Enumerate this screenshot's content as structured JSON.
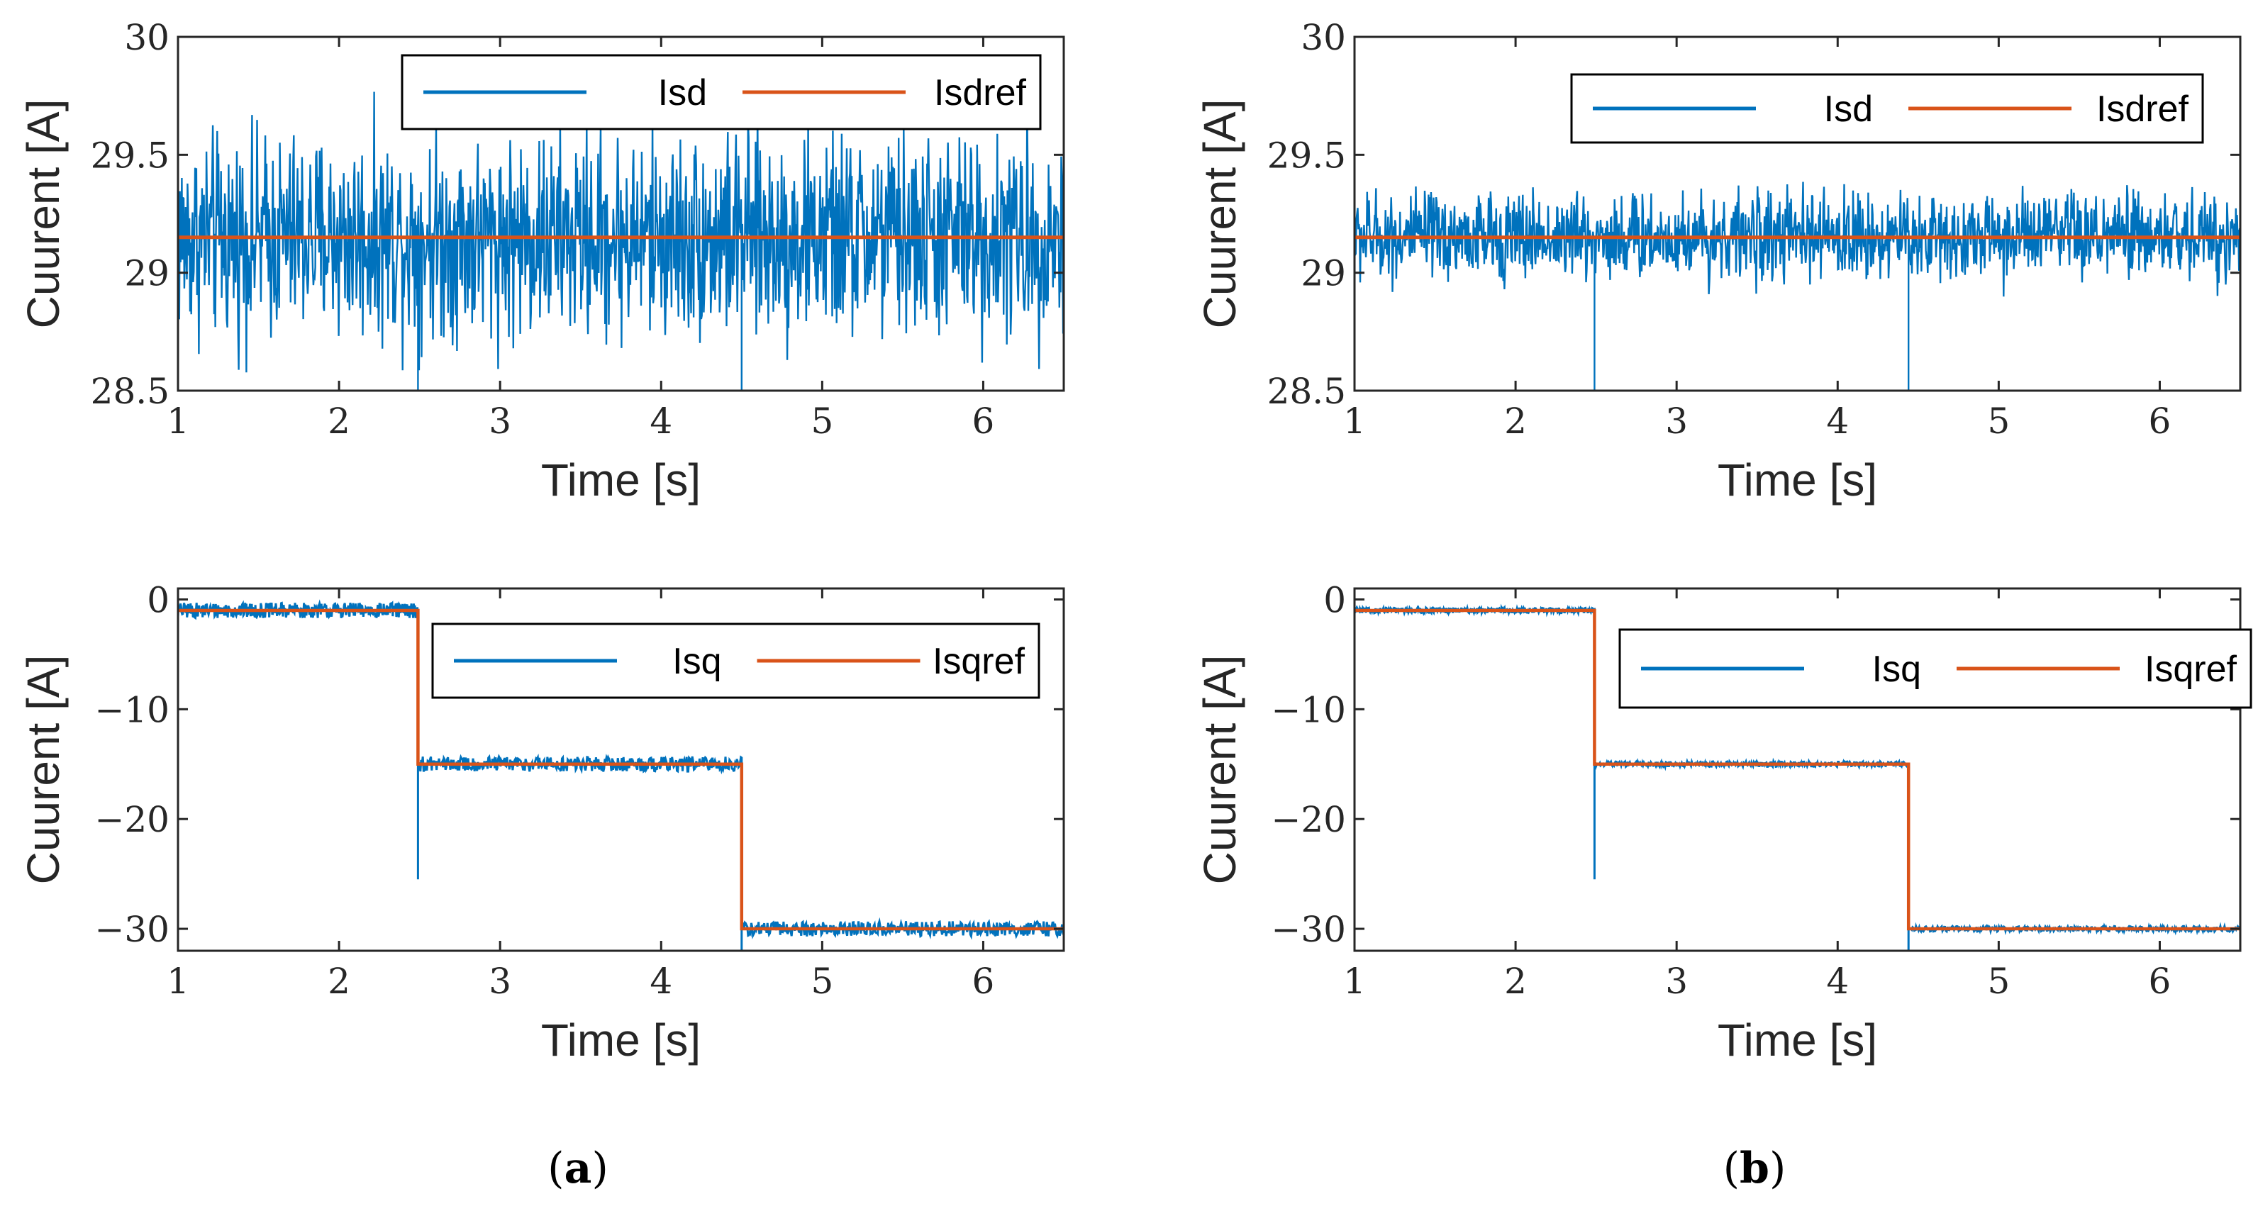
{
  "colors": {
    "measured": "#0072BD",
    "reference": "#D95319",
    "axis": "#262626"
  },
  "chart_data": [
    {
      "id": "a-top",
      "type": "line",
      "panel": "a",
      "xlabel": "Time [s]",
      "ylabel": "Cuurent [A]",
      "xlim": [
        1,
        6.5
      ],
      "ylim": [
        28.5,
        30
      ],
      "xticks": [
        "1",
        "2",
        "3",
        "4",
        "5",
        "6"
      ],
      "yticks": [
        "28.5",
        "29",
        "29.5",
        "30"
      ],
      "legend_position": "top-right",
      "series": [
        {
          "name": "Isd",
          "role": "measured",
          "mean": 29.15,
          "noise_band": [
            28.68,
            29.62
          ],
          "dips": [
            {
              "x": 2.49,
              "to": 28.5
            },
            {
              "x": 4.5,
              "to": 28.5
            }
          ]
        },
        {
          "name": "Isdref",
          "role": "reference",
          "x": [
            1,
            6.5
          ],
          "values": [
            29.15,
            29.15
          ]
        }
      ]
    },
    {
      "id": "a-bottom",
      "type": "line",
      "panel": "a",
      "xlabel": "Time [s]",
      "ylabel": "Cuurent [A]",
      "xlim": [
        1,
        6.5
      ],
      "ylim": [
        -32,
        1
      ],
      "xticks": [
        "1",
        "2",
        "3",
        "4",
        "5",
        "6"
      ],
      "yticks": [
        "0",
        "−10",
        "−20",
        "−30"
      ],
      "legend_position": "top-right",
      "series": [
        {
          "name": "Isq",
          "role": "measured",
          "steps": [
            {
              "x0": 1,
              "x1": 2.49,
              "level": -1
            },
            {
              "x0": 2.49,
              "x1": 4.5,
              "level": -15
            },
            {
              "x0": 4.5,
              "x1": 6.5,
              "level": -30
            }
          ],
          "noise_amplitude": 0.7,
          "spike": {
            "x": 2.49,
            "to": -25.5
          }
        },
        {
          "name": "Isqref",
          "role": "reference",
          "steps": [
            {
              "x0": 1,
              "x1": 2.49,
              "level": -1
            },
            {
              "x0": 2.49,
              "x1": 4.5,
              "level": -15
            },
            {
              "x0": 4.5,
              "x1": 6.5,
              "level": -30
            }
          ]
        }
      ]
    },
    {
      "id": "b-top",
      "type": "line",
      "panel": "b",
      "xlabel": "Time [s]",
      "ylabel": "Cuurent [A]",
      "xlim": [
        1,
        6.5
      ],
      "ylim": [
        28.5,
        30
      ],
      "xticks": [
        "1",
        "2",
        "3",
        "4",
        "5",
        "6"
      ],
      "yticks": [
        "28.5",
        "29",
        "29.5",
        "30"
      ],
      "legend_position": "top-right",
      "series": [
        {
          "name": "Isd",
          "role": "measured",
          "mean": 29.15,
          "noise_band": [
            28.95,
            29.36
          ],
          "dips": [
            {
              "x": 2.49,
              "to": 28.5
            },
            {
              "x": 4.44,
              "to": 28.5
            }
          ]
        },
        {
          "name": "Isdref",
          "role": "reference",
          "x": [
            1,
            6.5
          ],
          "values": [
            29.15,
            29.15
          ]
        }
      ]
    },
    {
      "id": "b-bottom",
      "type": "line",
      "panel": "b",
      "xlabel": "Time [s]",
      "ylabel": "Cuurent [A]",
      "xlim": [
        1,
        6.5
      ],
      "ylim": [
        -32,
        1
      ],
      "xticks": [
        "1",
        "2",
        "3",
        "4",
        "5",
        "6"
      ],
      "yticks": [
        "0",
        "−10",
        "−20",
        "−30"
      ],
      "legend_position": "top-right",
      "series": [
        {
          "name": "Isq",
          "role": "measured",
          "steps": [
            {
              "x0": 1,
              "x1": 2.49,
              "level": -1
            },
            {
              "x0": 2.49,
              "x1": 4.44,
              "level": -15
            },
            {
              "x0": 4.44,
              "x1": 6.5,
              "level": -30
            }
          ],
          "noise_amplitude": 0.25,
          "spike": {
            "x": 2.49,
            "to": -25.5
          }
        },
        {
          "name": "Isqref",
          "role": "reference",
          "steps": [
            {
              "x0": 1,
              "x1": 2.49,
              "level": -1
            },
            {
              "x0": 2.49,
              "x1": 4.44,
              "level": -15
            },
            {
              "x0": 4.44,
              "x1": 6.5,
              "level": -30
            }
          ]
        }
      ]
    }
  ],
  "captions": {
    "a": "a",
    "b": "b"
  }
}
